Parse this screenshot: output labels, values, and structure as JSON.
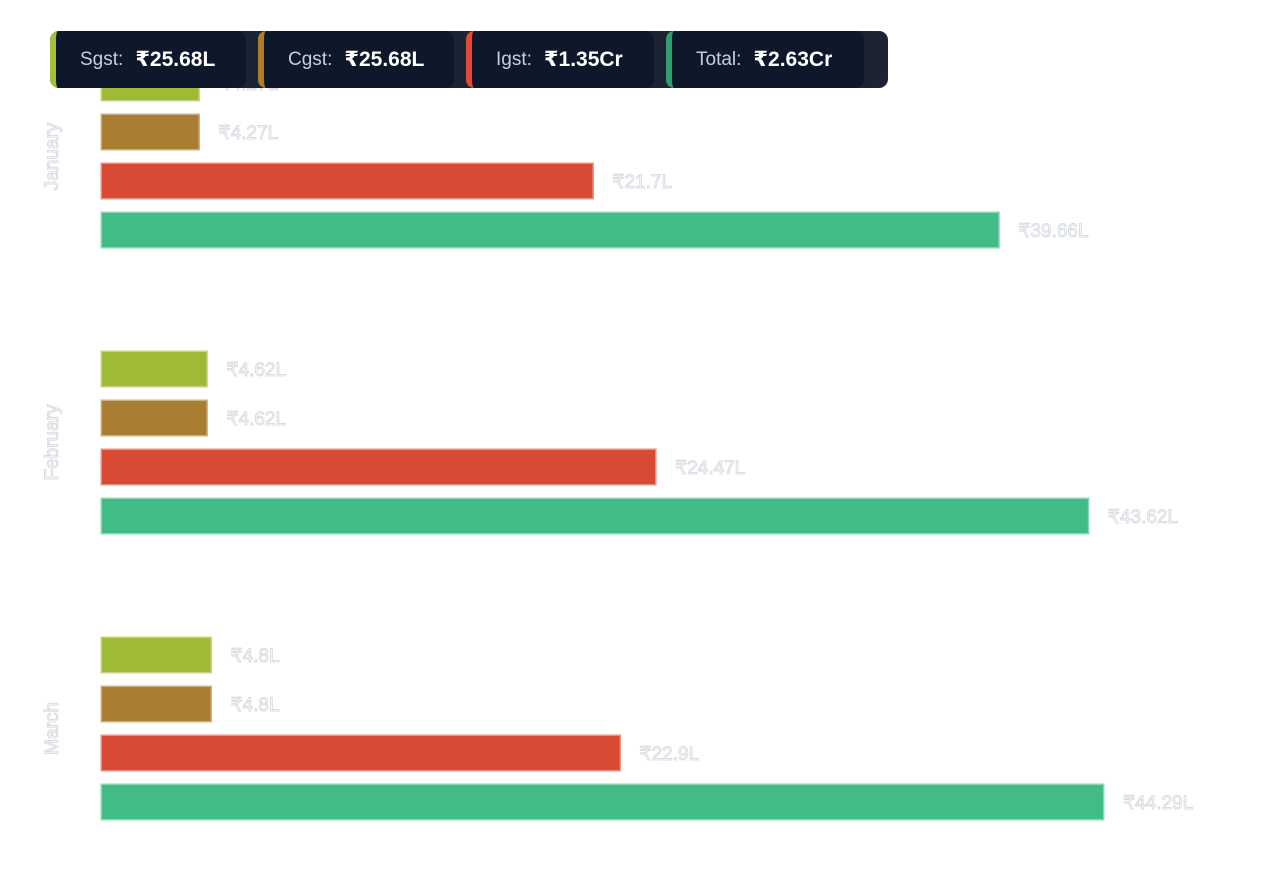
{
  "summary": [
    {
      "label": "Sgst:",
      "value": "₹25.68L",
      "color": "#a4be39"
    },
    {
      "label": "Cgst:",
      "value": "₹25.68L",
      "color": "#b07d27"
    },
    {
      "label": "Igst:",
      "value": "₹1.35Cr",
      "color": "#e24a36"
    },
    {
      "label": "Total:",
      "value": "₹2.63Cr",
      "color": "#2f9e6d"
    }
  ],
  "chart_data": {
    "type": "bar",
    "orientation": "horizontal",
    "categories": [
      "January",
      "February",
      "March"
    ],
    "series": [
      {
        "name": "Sgst",
        "color": "#9fbb35",
        "values": [
          4.27,
          4.62,
          4.8
        ],
        "labels": [
          "₹4.27L",
          "₹4.62L",
          "₹4.8L"
        ]
      },
      {
        "name": "Cgst",
        "color": "#a97e33",
        "values": [
          4.27,
          4.62,
          4.8
        ],
        "labels": [
          "₹4.27L",
          "₹4.62L",
          "₹4.8L"
        ]
      },
      {
        "name": "Igst",
        "color": "#d94a35",
        "values": [
          21.7,
          24.47,
          22.9
        ],
        "labels": [
          "₹21.7L",
          "₹24.47L",
          "₹22.9L"
        ]
      },
      {
        "name": "Total",
        "color": "#42bc86",
        "values": [
          39.66,
          43.62,
          44.29
        ],
        "labels": [
          "₹39.66L",
          "₹43.62L",
          "₹44.29L"
        ]
      }
    ],
    "value_unit": "₹ Lakh",
    "grid": false,
    "legend": "none"
  }
}
